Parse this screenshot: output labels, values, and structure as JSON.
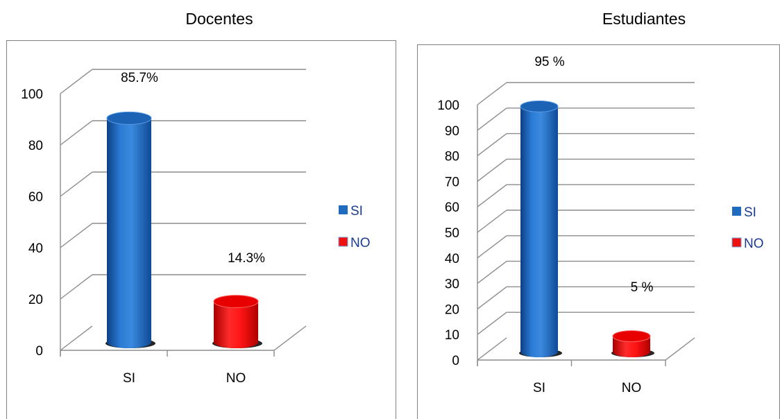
{
  "chart_data": [
    {
      "type": "bar",
      "title": "Docentes",
      "categories": [
        "SI",
        "NO"
      ],
      "values": [
        85.7,
        14.3
      ],
      "data_labels": [
        "85.7%",
        "14.3%"
      ],
      "ylim": [
        0,
        100
      ],
      "yticks": [
        0,
        20,
        40,
        60,
        80,
        100
      ],
      "legend": [
        "SI",
        "NO"
      ],
      "legend_position": "right",
      "colors": [
        "#1f6bc0",
        "#ee1111"
      ],
      "grid": true,
      "style": "3d-cylinder"
    },
    {
      "type": "bar",
      "title": "Estudiantes",
      "categories": [
        "SI",
        "NO"
      ],
      "values": [
        95,
        5
      ],
      "data_labels": [
        "95 %",
        "5 %"
      ],
      "ylim": [
        0,
        100
      ],
      "yticks": [
        0,
        10,
        20,
        30,
        40,
        50,
        60,
        70,
        80,
        90,
        100
      ],
      "legend": [
        "SI",
        "NO"
      ],
      "legend_position": "right",
      "colors": [
        "#1f6bc0",
        "#ee1111"
      ],
      "grid": true,
      "style": "3d-cylinder"
    }
  ]
}
